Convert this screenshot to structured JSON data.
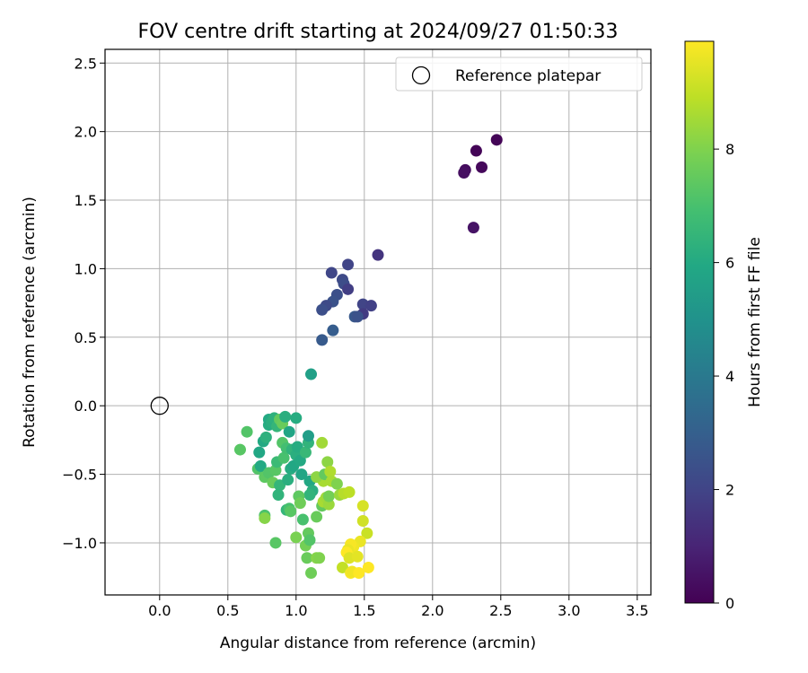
{
  "chart_data": {
    "type": "scatter",
    "title": "FOV centre drift starting at 2024/09/27 01:50:33",
    "xlabel": "Angular distance from reference (arcmin)",
    "ylabel": "Rotation from reference (arcmin)",
    "xlim": [
      -0.4,
      3.6
    ],
    "ylim": [
      -1.38,
      2.6
    ],
    "x_ticks": [
      "0.0",
      "0.5",
      "1.0",
      "1.5",
      "2.0",
      "2.5",
      "3.0",
      "3.5"
    ],
    "y_ticks": [
      "−1.0",
      "−0.5",
      "0.0",
      "0.5",
      "1.0",
      "1.5",
      "2.0",
      "2.5"
    ],
    "grid": true,
    "legend": {
      "position": "upper-right",
      "entries": [
        "Reference platepar"
      ]
    },
    "reference_point": {
      "x": 0.0,
      "y": 0.0
    },
    "colorbar": {
      "label": "Hours from first FF file",
      "colormap": "viridis",
      "range": [
        0,
        9.9
      ],
      "ticks": [
        "0",
        "2",
        "4",
        "6",
        "8"
      ]
    },
    "points": [
      {
        "x": 2.47,
        "y": 1.94,
        "t": 0.1
      },
      {
        "x": 2.32,
        "y": 1.86,
        "t": 0.1
      },
      {
        "x": 2.36,
        "y": 1.74,
        "t": 0.2
      },
      {
        "x": 2.24,
        "y": 1.72,
        "t": 0.3
      },
      {
        "x": 2.23,
        "y": 1.7,
        "t": 0.4
      },
      {
        "x": 2.3,
        "y": 1.3,
        "t": 0.5
      },
      {
        "x": 1.6,
        "y": 1.1,
        "t": 1.5
      },
      {
        "x": 1.38,
        "y": 1.03,
        "t": 2.0
      },
      {
        "x": 1.26,
        "y": 0.97,
        "t": 2.1
      },
      {
        "x": 1.34,
        "y": 0.92,
        "t": 2.2
      },
      {
        "x": 1.35,
        "y": 0.89,
        "t": 2.3
      },
      {
        "x": 1.38,
        "y": 0.85,
        "t": 1.8
      },
      {
        "x": 1.3,
        "y": 0.81,
        "t": 2.4
      },
      {
        "x": 1.27,
        "y": 0.76,
        "t": 2.5
      },
      {
        "x": 1.22,
        "y": 0.73,
        "t": 2.2
      },
      {
        "x": 1.19,
        "y": 0.7,
        "t": 2.4
      },
      {
        "x": 1.49,
        "y": 0.74,
        "t": 2.0
      },
      {
        "x": 1.55,
        "y": 0.73,
        "t": 1.9
      },
      {
        "x": 1.49,
        "y": 0.67,
        "t": 1.7
      },
      {
        "x": 1.43,
        "y": 0.65,
        "t": 2.7
      },
      {
        "x": 1.45,
        "y": 0.65,
        "t": 2.5
      },
      {
        "x": 1.27,
        "y": 0.55,
        "t": 2.9
      },
      {
        "x": 1.19,
        "y": 0.48,
        "t": 2.8
      },
      {
        "x": 1.11,
        "y": 0.23,
        "t": 5.6
      },
      {
        "x": 0.59,
        "y": -0.32,
        "t": 7.3
      },
      {
        "x": 0.64,
        "y": -0.19,
        "t": 7.2
      },
      {
        "x": 0.72,
        "y": -0.46,
        "t": 7.2
      },
      {
        "x": 0.73,
        "y": -0.34,
        "t": 5.9
      },
      {
        "x": 0.74,
        "y": -0.44,
        "t": 6.0
      },
      {
        "x": 0.76,
        "y": -0.26,
        "t": 6.0
      },
      {
        "x": 0.78,
        "y": -0.23,
        "t": 6.3
      },
      {
        "x": 0.8,
        "y": -0.14,
        "t": 6.1
      },
      {
        "x": 0.8,
        "y": -0.1,
        "t": 6.0
      },
      {
        "x": 0.82,
        "y": -0.12,
        "t": 6.2
      },
      {
        "x": 0.84,
        "y": -0.09,
        "t": 6.3
      },
      {
        "x": 0.86,
        "y": -0.15,
        "t": 6.5
      },
      {
        "x": 0.88,
        "y": -0.1,
        "t": 7.5
      },
      {
        "x": 0.9,
        "y": -0.13,
        "t": 7.6
      },
      {
        "x": 0.92,
        "y": -0.08,
        "t": 6.2
      },
      {
        "x": 0.95,
        "y": -0.19,
        "t": 5.8
      },
      {
        "x": 1.0,
        "y": -0.09,
        "t": 6.1
      },
      {
        "x": 0.77,
        "y": -0.52,
        "t": 7.4
      },
      {
        "x": 0.8,
        "y": -0.49,
        "t": 7.2
      },
      {
        "x": 0.83,
        "y": -0.56,
        "t": 7.6
      },
      {
        "x": 0.85,
        "y": -0.47,
        "t": 7.3
      },
      {
        "x": 0.86,
        "y": -0.41,
        "t": 6.7
      },
      {
        "x": 0.88,
        "y": -0.58,
        "t": 6.5
      },
      {
        "x": 0.87,
        "y": -0.65,
        "t": 6.4
      },
      {
        "x": 0.9,
        "y": -0.27,
        "t": 7.2
      },
      {
        "x": 0.91,
        "y": -0.38,
        "t": 7.0
      },
      {
        "x": 0.93,
        "y": -0.31,
        "t": 6.9
      },
      {
        "x": 0.94,
        "y": -0.54,
        "t": 6.2
      },
      {
        "x": 0.96,
        "y": -0.46,
        "t": 6.1
      },
      {
        "x": 0.97,
        "y": -0.32,
        "t": 6.4
      },
      {
        "x": 0.98,
        "y": -0.44,
        "t": 5.9
      },
      {
        "x": 1.0,
        "y": -0.36,
        "t": 6.2
      },
      {
        "x": 1.01,
        "y": -0.3,
        "t": 6.1
      },
      {
        "x": 1.03,
        "y": -0.4,
        "t": 6.0
      },
      {
        "x": 1.04,
        "y": -0.5,
        "t": 5.8
      },
      {
        "x": 1.07,
        "y": -0.34,
        "t": 6.6
      },
      {
        "x": 1.09,
        "y": -0.27,
        "t": 6.4
      },
      {
        "x": 1.09,
        "y": -0.22,
        "t": 5.5
      },
      {
        "x": 1.1,
        "y": -0.55,
        "t": 5.9
      },
      {
        "x": 1.12,
        "y": -0.62,
        "t": 6.2
      },
      {
        "x": 1.1,
        "y": -0.65,
        "t": 6.4
      },
      {
        "x": 0.77,
        "y": -0.8,
        "t": 7.1
      },
      {
        "x": 0.77,
        "y": -0.82,
        "t": 8.1
      },
      {
        "x": 0.85,
        "y": -1.0,
        "t": 7.3
      },
      {
        "x": 0.93,
        "y": -0.76,
        "t": 6.5
      },
      {
        "x": 0.95,
        "y": -0.75,
        "t": 7.0
      },
      {
        "x": 0.96,
        "y": -0.77,
        "t": 7.3
      },
      {
        "x": 1.0,
        "y": -0.96,
        "t": 7.9
      },
      {
        "x": 1.02,
        "y": -0.66,
        "t": 7.4
      },
      {
        "x": 1.03,
        "y": -0.71,
        "t": 7.7
      },
      {
        "x": 1.05,
        "y": -0.83,
        "t": 7.0
      },
      {
        "x": 1.07,
        "y": -1.02,
        "t": 7.8
      },
      {
        "x": 1.09,
        "y": -0.93,
        "t": 7.5
      },
      {
        "x": 1.1,
        "y": -0.98,
        "t": 7.2
      },
      {
        "x": 1.08,
        "y": -1.11,
        "t": 7.6
      },
      {
        "x": 1.11,
        "y": -1.22,
        "t": 7.7
      },
      {
        "x": 1.15,
        "y": -1.11,
        "t": 8.1
      },
      {
        "x": 1.17,
        "y": -1.11,
        "t": 8.0
      },
      {
        "x": 1.15,
        "y": -0.81,
        "t": 7.6
      },
      {
        "x": 1.19,
        "y": -0.73,
        "t": 7.5
      },
      {
        "x": 1.2,
        "y": -0.7,
        "t": 8.6
      },
      {
        "x": 1.22,
        "y": -0.67,
        "t": 8.5
      },
      {
        "x": 1.24,
        "y": -0.72,
        "t": 8.4
      },
      {
        "x": 1.24,
        "y": -0.66,
        "t": 7.8
      },
      {
        "x": 1.2,
        "y": -0.55,
        "t": 8.6
      },
      {
        "x": 1.15,
        "y": -0.52,
        "t": 8.2
      },
      {
        "x": 1.19,
        "y": -0.27,
        "t": 8.5
      },
      {
        "x": 1.21,
        "y": -0.5,
        "t": 7.5
      },
      {
        "x": 1.23,
        "y": -0.41,
        "t": 8.2
      },
      {
        "x": 1.25,
        "y": -0.48,
        "t": 8.7
      },
      {
        "x": 1.26,
        "y": -0.55,
        "t": 8.6
      },
      {
        "x": 1.3,
        "y": -0.57,
        "t": 8.0
      },
      {
        "x": 1.32,
        "y": -0.65,
        "t": 8.4
      },
      {
        "x": 1.35,
        "y": -0.64,
        "t": 8.8
      },
      {
        "x": 1.39,
        "y": -0.63,
        "t": 8.9
      },
      {
        "x": 1.49,
        "y": -0.73,
        "t": 9.3
      },
      {
        "x": 1.49,
        "y": -0.84,
        "t": 9.2
      },
      {
        "x": 1.52,
        "y": -0.93,
        "t": 9.1
      },
      {
        "x": 1.47,
        "y": -0.99,
        "t": 9.6
      },
      {
        "x": 1.42,
        "y": -1.03,
        "t": 9.7
      },
      {
        "x": 1.4,
        "y": -1.01,
        "t": 9.8
      },
      {
        "x": 1.38,
        "y": -1.05,
        "t": 9.6
      },
      {
        "x": 1.37,
        "y": -1.07,
        "t": 9.9
      },
      {
        "x": 1.39,
        "y": -1.11,
        "t": 9.4
      },
      {
        "x": 1.45,
        "y": -1.1,
        "t": 9.5
      },
      {
        "x": 1.34,
        "y": -1.18,
        "t": 9.0
      },
      {
        "x": 1.4,
        "y": -1.22,
        "t": 9.8
      },
      {
        "x": 1.41,
        "y": -1.21,
        "t": 9.7
      },
      {
        "x": 1.46,
        "y": -1.22,
        "t": 9.9
      },
      {
        "x": 1.53,
        "y": -1.18,
        "t": 9.9
      }
    ]
  }
}
